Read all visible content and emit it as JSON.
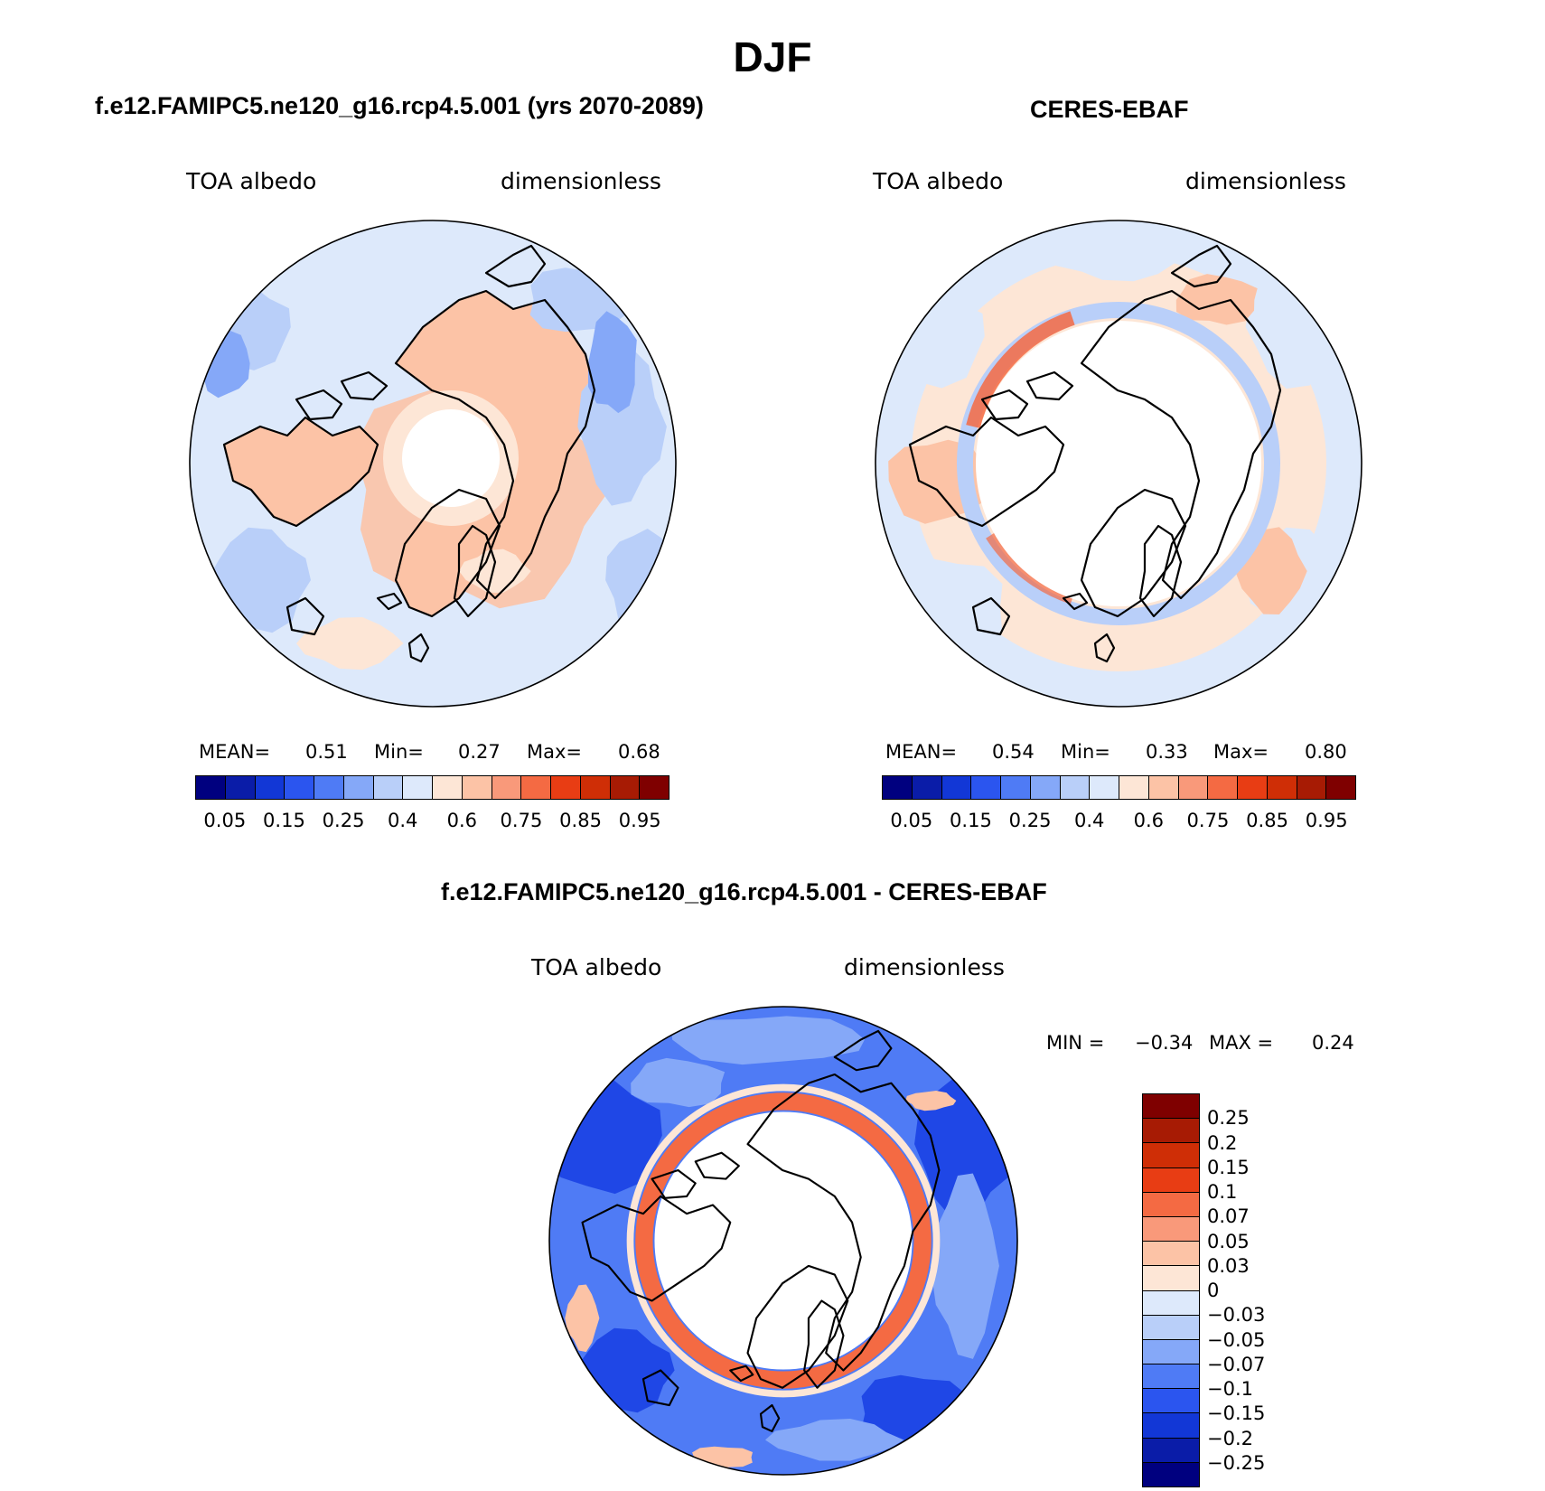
{
  "title": "DJF",
  "panels": [
    {
      "id": "model",
      "title": "f.e12.FAMIPC5.ne120_g16.rcp4.5.001 (yrs 2070-2089)",
      "variable": "TOA albedo",
      "units": "dimensionless",
      "stats": {
        "mean_label": "MEAN=",
        "mean": "0.51",
        "min_label": "Min=",
        "min": "0.27",
        "max_label": "Max=",
        "max": "0.68"
      },
      "colorbar_ticks": [
        "0.05",
        "0.15",
        "0.25",
        "0.4",
        "0.6",
        "0.75",
        "0.85",
        "0.95"
      ]
    },
    {
      "id": "obs",
      "title": "CERES-EBAF",
      "variable": "TOA albedo",
      "units": "dimensionless",
      "stats": {
        "mean_label": "MEAN=",
        "mean": "0.54",
        "min_label": "Min=",
        "min": "0.33",
        "max_label": "Max=",
        "max": "0.80"
      },
      "colorbar_ticks": [
        "0.05",
        "0.15",
        "0.25",
        "0.4",
        "0.6",
        "0.75",
        "0.85",
        "0.95"
      ]
    },
    {
      "id": "diff",
      "title": "f.e12.FAMIPC5.ne120_g16.rcp4.5.001 - CERES-EBAF",
      "variable": "TOA albedo",
      "units": "dimensionless",
      "stats": {
        "min_label": "MIN =",
        "min": "−0.34",
        "max_label": "MAX =",
        "max": "0.24"
      },
      "colorbar_ticks": [
        "0.25",
        "0.2",
        "0.15",
        "0.1",
        "0.07",
        "0.05",
        "0.03",
        "0",
        "−0.03",
        "−0.05",
        "−0.07",
        "−0.1",
        "−0.15",
        "−0.2",
        "−0.25"
      ]
    }
  ],
  "palette": [
    "#00007f",
    "#0a1ca8",
    "#1237d6",
    "#2b55ef",
    "#4f7bf5",
    "#85a8f8",
    "#b9cff9",
    "#dde9fb",
    "#fde6d6",
    "#fcc3a6",
    "#f9997a",
    "#f46a43",
    "#e83d14",
    "#cf2e06",
    "#a71b04",
    "#7f0000"
  ],
  "map_colors": {
    "pale_blue": "#dde9fb",
    "light_blue": "#b9cff9",
    "mid_blue": "#85a8f8",
    "blue": "#4f7bf5",
    "strong_blue": "#1f47e6",
    "peach": "#fcc3a6",
    "light_peach": "#fde6d6",
    "orange": "#f46a43"
  }
}
